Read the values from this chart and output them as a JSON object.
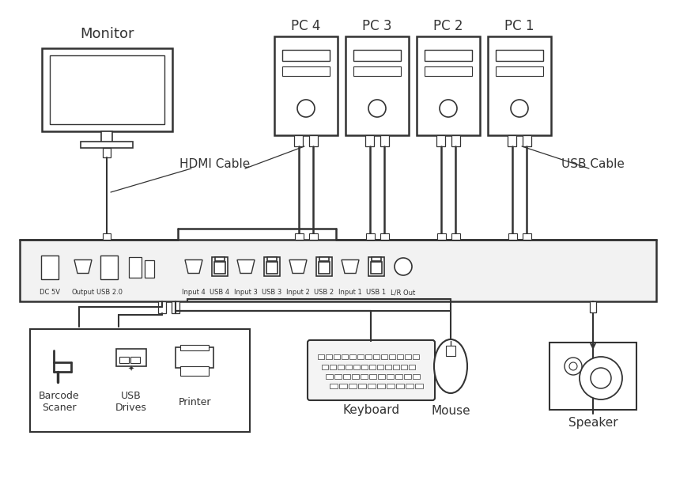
{
  "bg_color": "#ffffff",
  "lc": "#333333",
  "monitor_label": "Monitor",
  "pc_labels": [
    "PC 4",
    "PC 3",
    "PC 2",
    "PC 1"
  ],
  "hdmi_cable_label": "HDMI Cable",
  "usb_cable_label": "USB Cable",
  "bottom_labels": [
    "Barcode\nScaner",
    "USB\nDrives",
    "Printer",
    "Keyboard",
    "Mouse",
    "Speaker"
  ],
  "kvm_labels": [
    "DC 5V",
    "Output",
    "USB 2.0",
    "Input 4",
    "USB 4",
    "Input 3",
    "USB 3",
    "Input 2",
    "USB 2",
    "Input 1",
    "USB 1",
    "L/R Out"
  ],
  "fig_w": 8.55,
  "fig_h": 6.03,
  "dpi": 100
}
